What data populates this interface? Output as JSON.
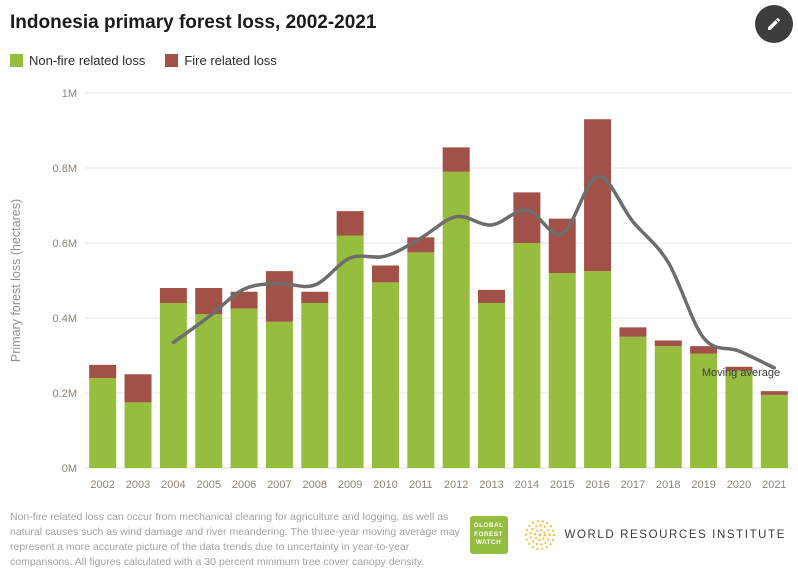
{
  "header": {
    "title": "Indonesia primary forest loss, 2002-2021"
  },
  "legend": [
    {
      "label": "Non-fire related loss",
      "color": "#97bd3f"
    },
    {
      "label": "Fire related loss",
      "color": "#a15147"
    }
  ],
  "chart_data": {
    "type": "bar",
    "stacked": true,
    "title": "Indonesia primary forest loss, 2002-2021",
    "xlabel": "",
    "ylabel": "Primary forest loss (hectares)",
    "units": "millions of hectares",
    "ylim": [
      0,
      1
    ],
    "yticks": [
      0,
      0.2,
      0.4,
      0.6,
      0.8,
      1.0
    ],
    "ytick_labels": [
      "0M",
      "0.2M",
      "0.4M",
      "0.6M",
      "0.8M",
      "1M"
    ],
    "grid": true,
    "legend_position": "top-left",
    "categories": [
      "2002",
      "2003",
      "2004",
      "2005",
      "2006",
      "2007",
      "2008",
      "2009",
      "2010",
      "2011",
      "2012",
      "2013",
      "2014",
      "2015",
      "2016",
      "2017",
      "2018",
      "2019",
      "2020",
      "2021"
    ],
    "series": [
      {
        "name": "Non-fire related loss",
        "color": "#97bd3f",
        "values": [
          0.24,
          0.175,
          0.44,
          0.41,
          0.425,
          0.39,
          0.44,
          0.62,
          0.495,
          0.575,
          0.79,
          0.44,
          0.6,
          0.52,
          0.525,
          0.35,
          0.325,
          0.305,
          0.26,
          0.195
        ]
      },
      {
        "name": "Fire related loss",
        "color": "#a15147",
        "values": [
          0.035,
          0.075,
          0.04,
          0.07,
          0.045,
          0.135,
          0.03,
          0.065,
          0.045,
          0.04,
          0.065,
          0.035,
          0.135,
          0.145,
          0.405,
          0.025,
          0.015,
          0.02,
          0.01,
          0.01
        ]
      }
    ],
    "line_series": {
      "name": "Moving average",
      "color": "#6d6d6d",
      "values": [
        null,
        null,
        0.335,
        0.403,
        0.477,
        0.492,
        0.488,
        0.56,
        0.565,
        0.613,
        0.67,
        0.648,
        0.688,
        0.625,
        0.777,
        0.657,
        0.548,
        0.347,
        0.312,
        0.267
      ]
    },
    "annotation": {
      "text": "Moving average",
      "year": "2020"
    }
  },
  "footer": {
    "note": "Non-fire related loss can occur from mechanical clearing for agriculture and logging, as well as natural causes such as wind damage and river meandering. The three-year moving average may represent a more accurate picture of the data trends due to uncertainty in year-to-year comparisons. All figures calculated with a 30 percent minimum tree cover canopy density.",
    "logos": {
      "gfw": {
        "lines": [
          "GLOBAL",
          "FOREST",
          "WATCH"
        ],
        "color": "#94be3f"
      },
      "wri": {
        "label": "WORLD RESOURCES INSTITUTE"
      }
    }
  },
  "colors": {
    "non_fire": "#97bd3f",
    "fire": "#a15147",
    "moving_average": "#6d6d6d",
    "axis_text": "#8e8476",
    "gridline": "#e7e7e7"
  }
}
